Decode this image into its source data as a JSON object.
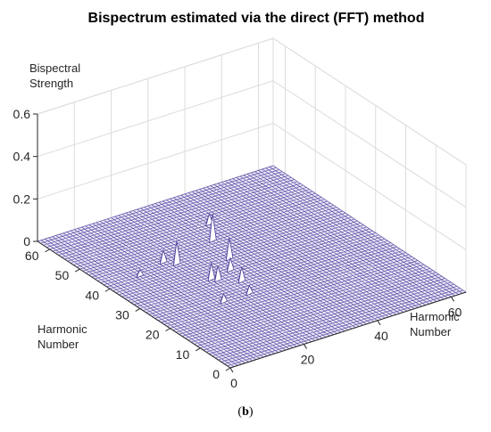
{
  "chart_data": {
    "type": "surface",
    "title": "Bispectrum estimated via the direct (FFT) method",
    "xlabel": "Harmonic Number",
    "ylabel": "Harmonic Number",
    "zlabel": "Bispectral Strength",
    "xlim": [
      0,
      64
    ],
    "ylim": [
      0,
      64
    ],
    "zlim": [
      0,
      0.6
    ],
    "x_ticks": [
      "0",
      "20",
      "40",
      "60"
    ],
    "y_ticks": [
      "0",
      "10",
      "20",
      "30",
      "40",
      "50",
      "60"
    ],
    "z_ticks": [
      "0",
      "0.2",
      "0.4",
      "0.6"
    ],
    "grid": true,
    "background_level": 0,
    "peaks": [
      {
        "x": 21,
        "y": 32,
        "z": 0.08
      },
      {
        "x": 22,
        "y": 31,
        "z": 0.07
      },
      {
        "x": 27,
        "y": 33,
        "z": 0.06
      },
      {
        "x": 30,
        "y": 37,
        "z": 0.1
      },
      {
        "x": 32,
        "y": 45,
        "z": 0.13
      },
      {
        "x": 19,
        "y": 41,
        "z": 0.11
      },
      {
        "x": 17,
        "y": 43,
        "z": 0.06
      },
      {
        "x": 26,
        "y": 28,
        "z": 0.07
      },
      {
        "x": 24,
        "y": 23,
        "z": 0.04
      },
      {
        "x": 17,
        "y": 23,
        "z": 0.04
      },
      {
        "x": 9,
        "y": 41,
        "z": 0.03
      },
      {
        "x": 36,
        "y": 51,
        "z": 0.05
      }
    ]
  },
  "caption": {
    "open": "(",
    "letter": "b",
    "close": ")"
  },
  "colors": {
    "mesh": "#5a4fa6",
    "base": "#ece9f7",
    "peak_edge": "#4a3f96"
  }
}
